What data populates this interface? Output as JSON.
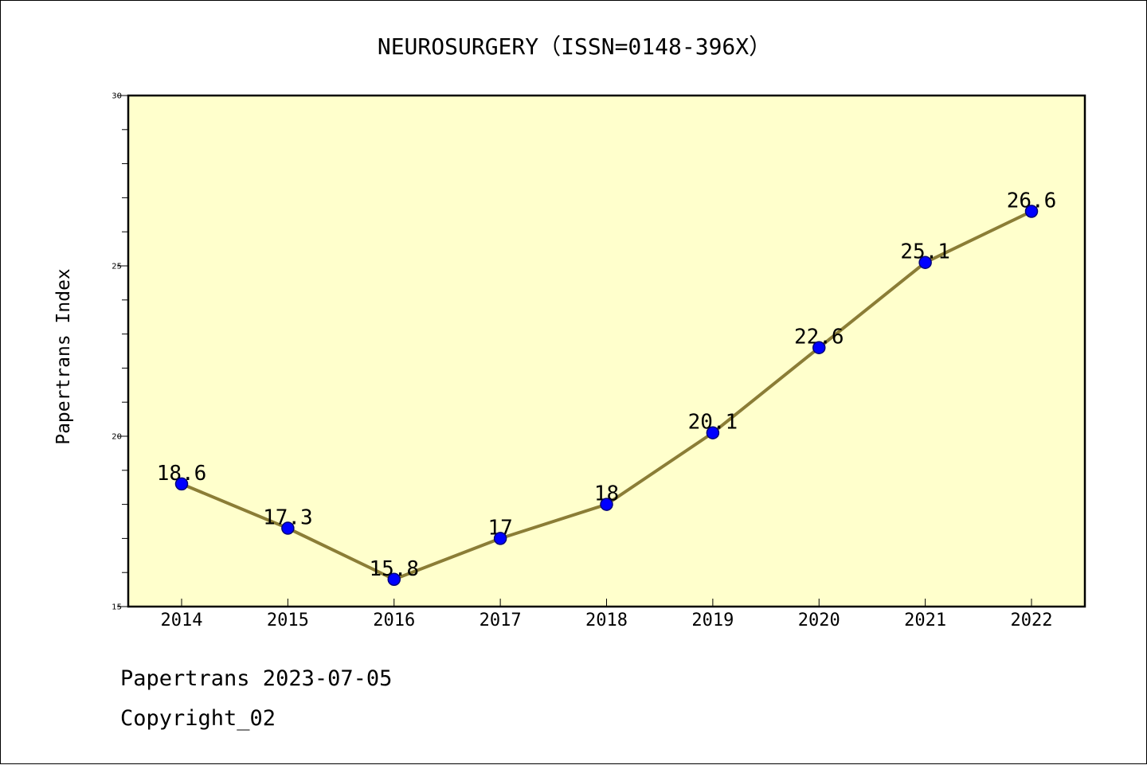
{
  "chart_data": {
    "type": "line",
    "title": "NEUROSURGERY（ISSN=0148-396X）",
    "xlabel": "",
    "ylabel": "Papertrans Index",
    "categories": [
      "2014",
      "2015",
      "2016",
      "2017",
      "2018",
      "2019",
      "2020",
      "2021",
      "2022"
    ],
    "series": [
      {
        "values": [
          18.6,
          17.3,
          15.8,
          17,
          18,
          20.1,
          22.6,
          25.1,
          26.6
        ],
        "data_labels": [
          "18.6",
          "17.3",
          "15.8",
          "17",
          "18",
          "20.1",
          "22.6",
          "25.1",
          "26.6"
        ]
      }
    ],
    "ylim": [
      15,
      30
    ],
    "y_major_ticks": [
      15,
      20,
      25,
      30
    ],
    "y_tick_labels": [
      "15",
      "20",
      "25",
      "30"
    ],
    "y_minor_step": 1,
    "grid": false,
    "legend": "none",
    "colors": {
      "plot_background": "#ffffcc",
      "line": "#8b7d36",
      "marker_fill": "#0000ff",
      "marker_edge": "#00007a",
      "axes": "#000000"
    }
  },
  "footer": {
    "source_line": "Papertrans 2023-07-05",
    "copyright_line": "Copyright_02"
  }
}
